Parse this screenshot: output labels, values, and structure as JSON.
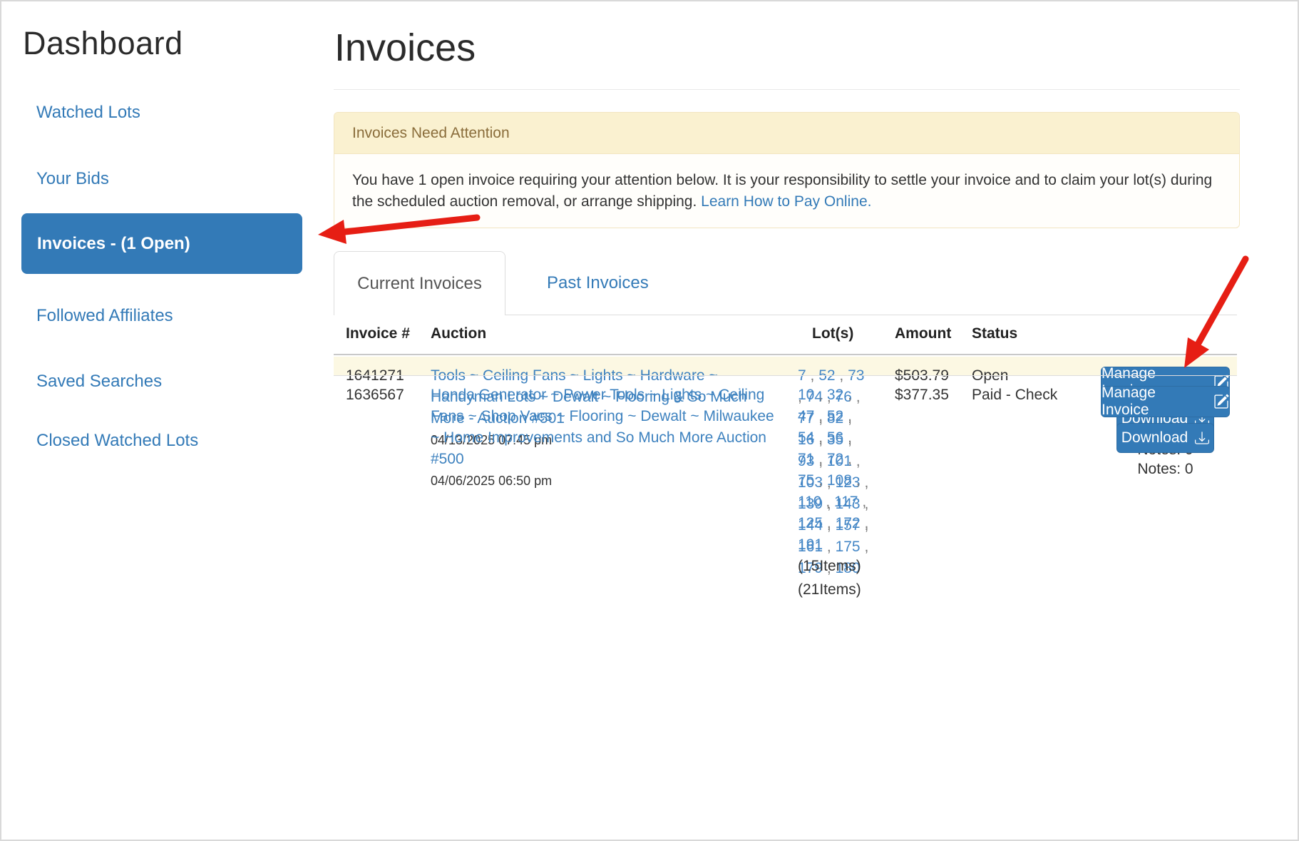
{
  "sidebar": {
    "title": "Dashboard",
    "items": [
      {
        "label": "Watched Lots",
        "selected": false
      },
      {
        "label": "Your Bids",
        "selected": false
      },
      {
        "label": "Invoices - (1 Open)",
        "selected": true
      },
      {
        "label": "Followed Affiliates",
        "selected": false
      },
      {
        "label": "Saved Searches",
        "selected": false
      },
      {
        "label": "Closed Watched Lots",
        "selected": false
      }
    ]
  },
  "main": {
    "title": "Invoices",
    "alert": {
      "heading": "Invoices Need Attention",
      "body_text": "You have 1 open invoice requiring your attention below. It is your responsibility to settle your invoice and to claim your lot(s) during the scheduled auction removal, or arrange shipping.",
      "link_text": "Learn How to Pay Online."
    },
    "tabs": [
      {
        "label": "Current Invoices",
        "active": true
      },
      {
        "label": "Past Invoices",
        "active": false
      }
    ],
    "table": {
      "headers": [
        "Invoice #",
        "Auction",
        "Lot(s)",
        "Amount",
        "Status"
      ],
      "rows": [
        {
          "invoice_number": "1641271",
          "auction_lines": [
            "Tools ~ Ceiling Fans ~ Lights ~ Hardware ~",
            "Handyman Lots ~ Dewalt ~ Flooring & So Much",
            "More - Auction #501"
          ],
          "date": "04/13/2025 07:45 pm",
          "lot_lines": [
            "7 , 52 , 73",
            ", 74 , 76 ,",
            "77 , 82 ,",
            "16 , 35 ,",
            "93 , 101 ,",
            "103 , 123 ,",
            "139 , 143 ,",
            "144 , 157 ,",
            "161 , 175 ,",
            "179 , 180"
          ],
          "items_count_label": "(21Items)",
          "amount": "$503.79",
          "status": "Open",
          "highlighted": true,
          "manage_label": "Manage Invoice",
          "download_label": "Download",
          "notes_label": "Notes: 0"
        },
        {
          "invoice_number": "1636567",
          "auction_lines": [
            "Honda Generator ~ Power Tools ~ Lights ~ Ceiling",
            "Fans ~ Shop Vacs ~ Flooring ~ Dewalt ~ Milwaukee",
            "~ Home Improvements and So Much More Auction",
            "#500"
          ],
          "date": "04/06/2025 06:50 pm",
          "lot_lines": [
            "10 , 32 ,",
            "47 , 52 ,",
            "54 , 56 ,",
            "71 , 72 ,",
            "75 , 108 ,",
            "110 , 117 ,",
            "125 , 172 ,",
            "191"
          ],
          "items_count_label": "(15Items)",
          "amount": "$377.35",
          "status": "Paid - Check",
          "highlighted": false,
          "manage_label": "Manage Invoice",
          "download_label": "Download",
          "notes_label": "Notes: 0"
        }
      ]
    }
  },
  "annotations": {
    "arrow_color": "#e61e14"
  }
}
